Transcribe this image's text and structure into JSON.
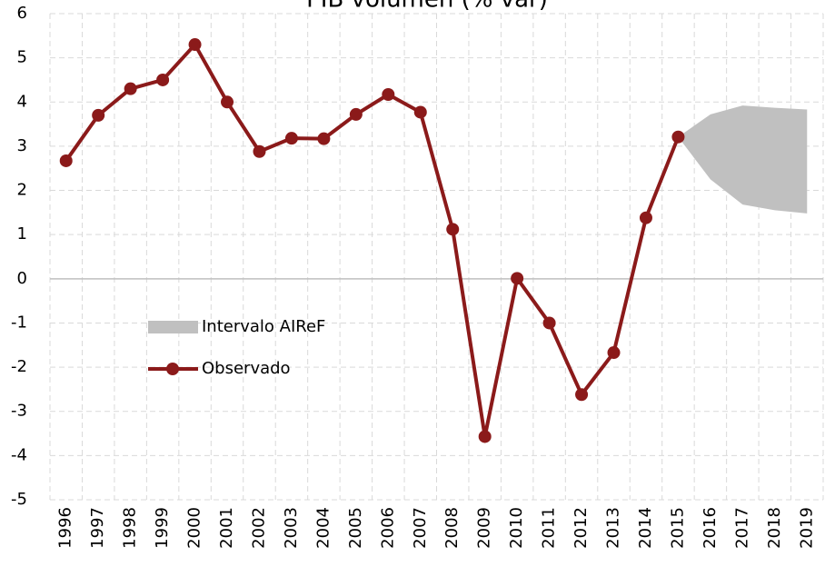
{
  "chart_data": {
    "type": "line",
    "title": "PIB volumen (% var)",
    "categories": [
      "1996",
      "1997",
      "1998",
      "1999",
      "2000",
      "2001",
      "2002",
      "2003",
      "2004",
      "2005",
      "2006",
      "2007",
      "2008",
      "2009",
      "2010",
      "2011",
      "2012",
      "2013",
      "2014",
      "2015",
      "2016",
      "2017",
      "2018",
      "2019"
    ],
    "series": [
      {
        "name": "Intervalo AIReF",
        "type": "band",
        "color": "#c0c0c0",
        "values": [
          null,
          null,
          null,
          null,
          null,
          null,
          null,
          null,
          null,
          null,
          null,
          null,
          null,
          null,
          null,
          null,
          null,
          null,
          null,
          3.21,
          3.72,
          3.92,
          3.87,
          3.83
        ],
        "lower": [
          null,
          null,
          null,
          null,
          null,
          null,
          null,
          null,
          null,
          null,
          null,
          null,
          null,
          null,
          null,
          null,
          null,
          null,
          null,
          3.21,
          2.25,
          1.68,
          1.55,
          1.48
        ]
      },
      {
        "name": "Observado",
        "type": "line",
        "color": "#8b1a1a",
        "values": [
          2.67,
          3.7,
          4.3,
          4.5,
          5.3,
          4.0,
          2.88,
          3.18,
          3.17,
          3.72,
          4.17,
          3.77,
          1.12,
          -3.57,
          0.01,
          -1.0,
          -2.62,
          -1.67,
          1.38,
          3.21,
          null,
          null,
          null,
          null
        ]
      }
    ],
    "ylim": [
      -5,
      6
    ],
    "yticks": [
      -5,
      -4,
      -3,
      -2,
      -1,
      0,
      1,
      2,
      3,
      4,
      5,
      6
    ],
    "grid": true
  }
}
